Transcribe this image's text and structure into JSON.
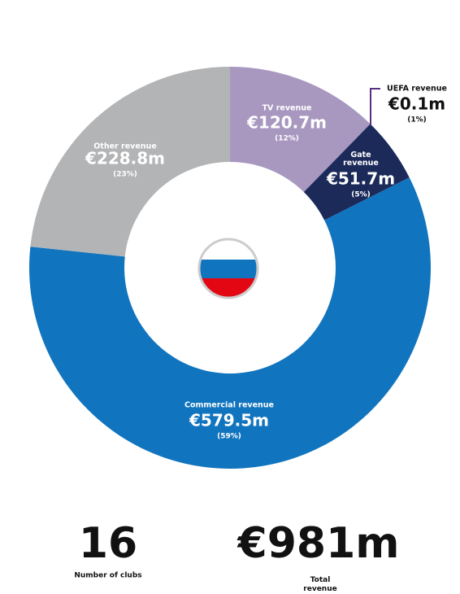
{
  "chart_data": {
    "type": "donut",
    "categories": [
      "TV revenue",
      "UEFA revenue",
      "Gate revenue",
      "Commercial revenue",
      "Other revenue"
    ],
    "values": [
      120.7,
      0.1,
      51.7,
      579.5,
      228.8
    ],
    "value_labels": [
      "€120.7m",
      "€0.1m",
      "€51.7m",
      "€579.5m",
      "€228.8m"
    ],
    "percent_labels": [
      "(12%)",
      "(1%)",
      "(5%)",
      "(59%)",
      "(23%)"
    ],
    "colors": [
      "#a898c0",
      "#5a2d82",
      "#1c2a5a",
      "#1174be",
      "#b3b4b6"
    ]
  },
  "stats": {
    "clubs": {
      "value": 16,
      "label": "Number of clubs"
    },
    "total": {
      "value": "€981m",
      "label": "Total revenue"
    }
  }
}
